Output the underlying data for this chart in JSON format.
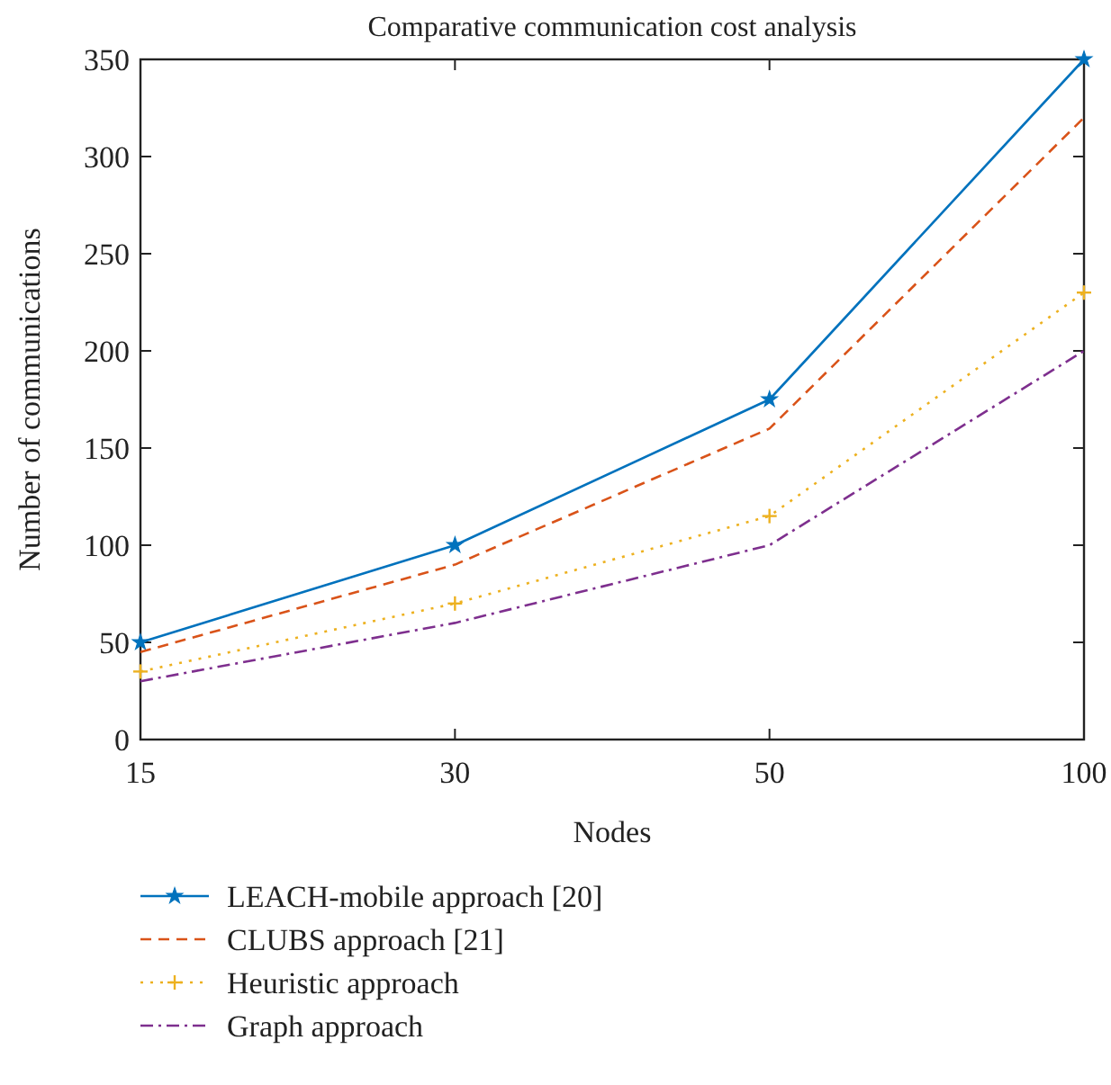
{
  "chart_data": {
    "type": "line",
    "title": "Comparative communication cost analysis",
    "xlabel": "Nodes",
    "ylabel": "Number of communications",
    "categories": [
      "15",
      "30",
      "50",
      "100"
    ],
    "ylim": [
      0,
      350
    ],
    "yticks": [
      0,
      50,
      100,
      150,
      200,
      250,
      300,
      350
    ],
    "grid": false,
    "legend": "bottom",
    "series": [
      {
        "name": "LEACH-mobile approach [20]",
        "color": "#0072bd",
        "values": [
          50,
          100,
          175,
          350
        ],
        "marker": "star",
        "line_style": "solid"
      },
      {
        "name": "CLUBS approach [21]",
        "color": "#d95319",
        "values": [
          45,
          90,
          160,
          320
        ],
        "marker": "none",
        "line_style": "dashed"
      },
      {
        "name": "Heuristic approach",
        "color": "#edb120",
        "values": [
          35,
          70,
          115,
          230
        ],
        "marker": "cross",
        "line_style": "dotted"
      },
      {
        "name": "Graph approach",
        "color": "#7e2f8e",
        "values": [
          30,
          60,
          100,
          200
        ],
        "marker": "none",
        "line_style": "dashdot"
      }
    ]
  }
}
